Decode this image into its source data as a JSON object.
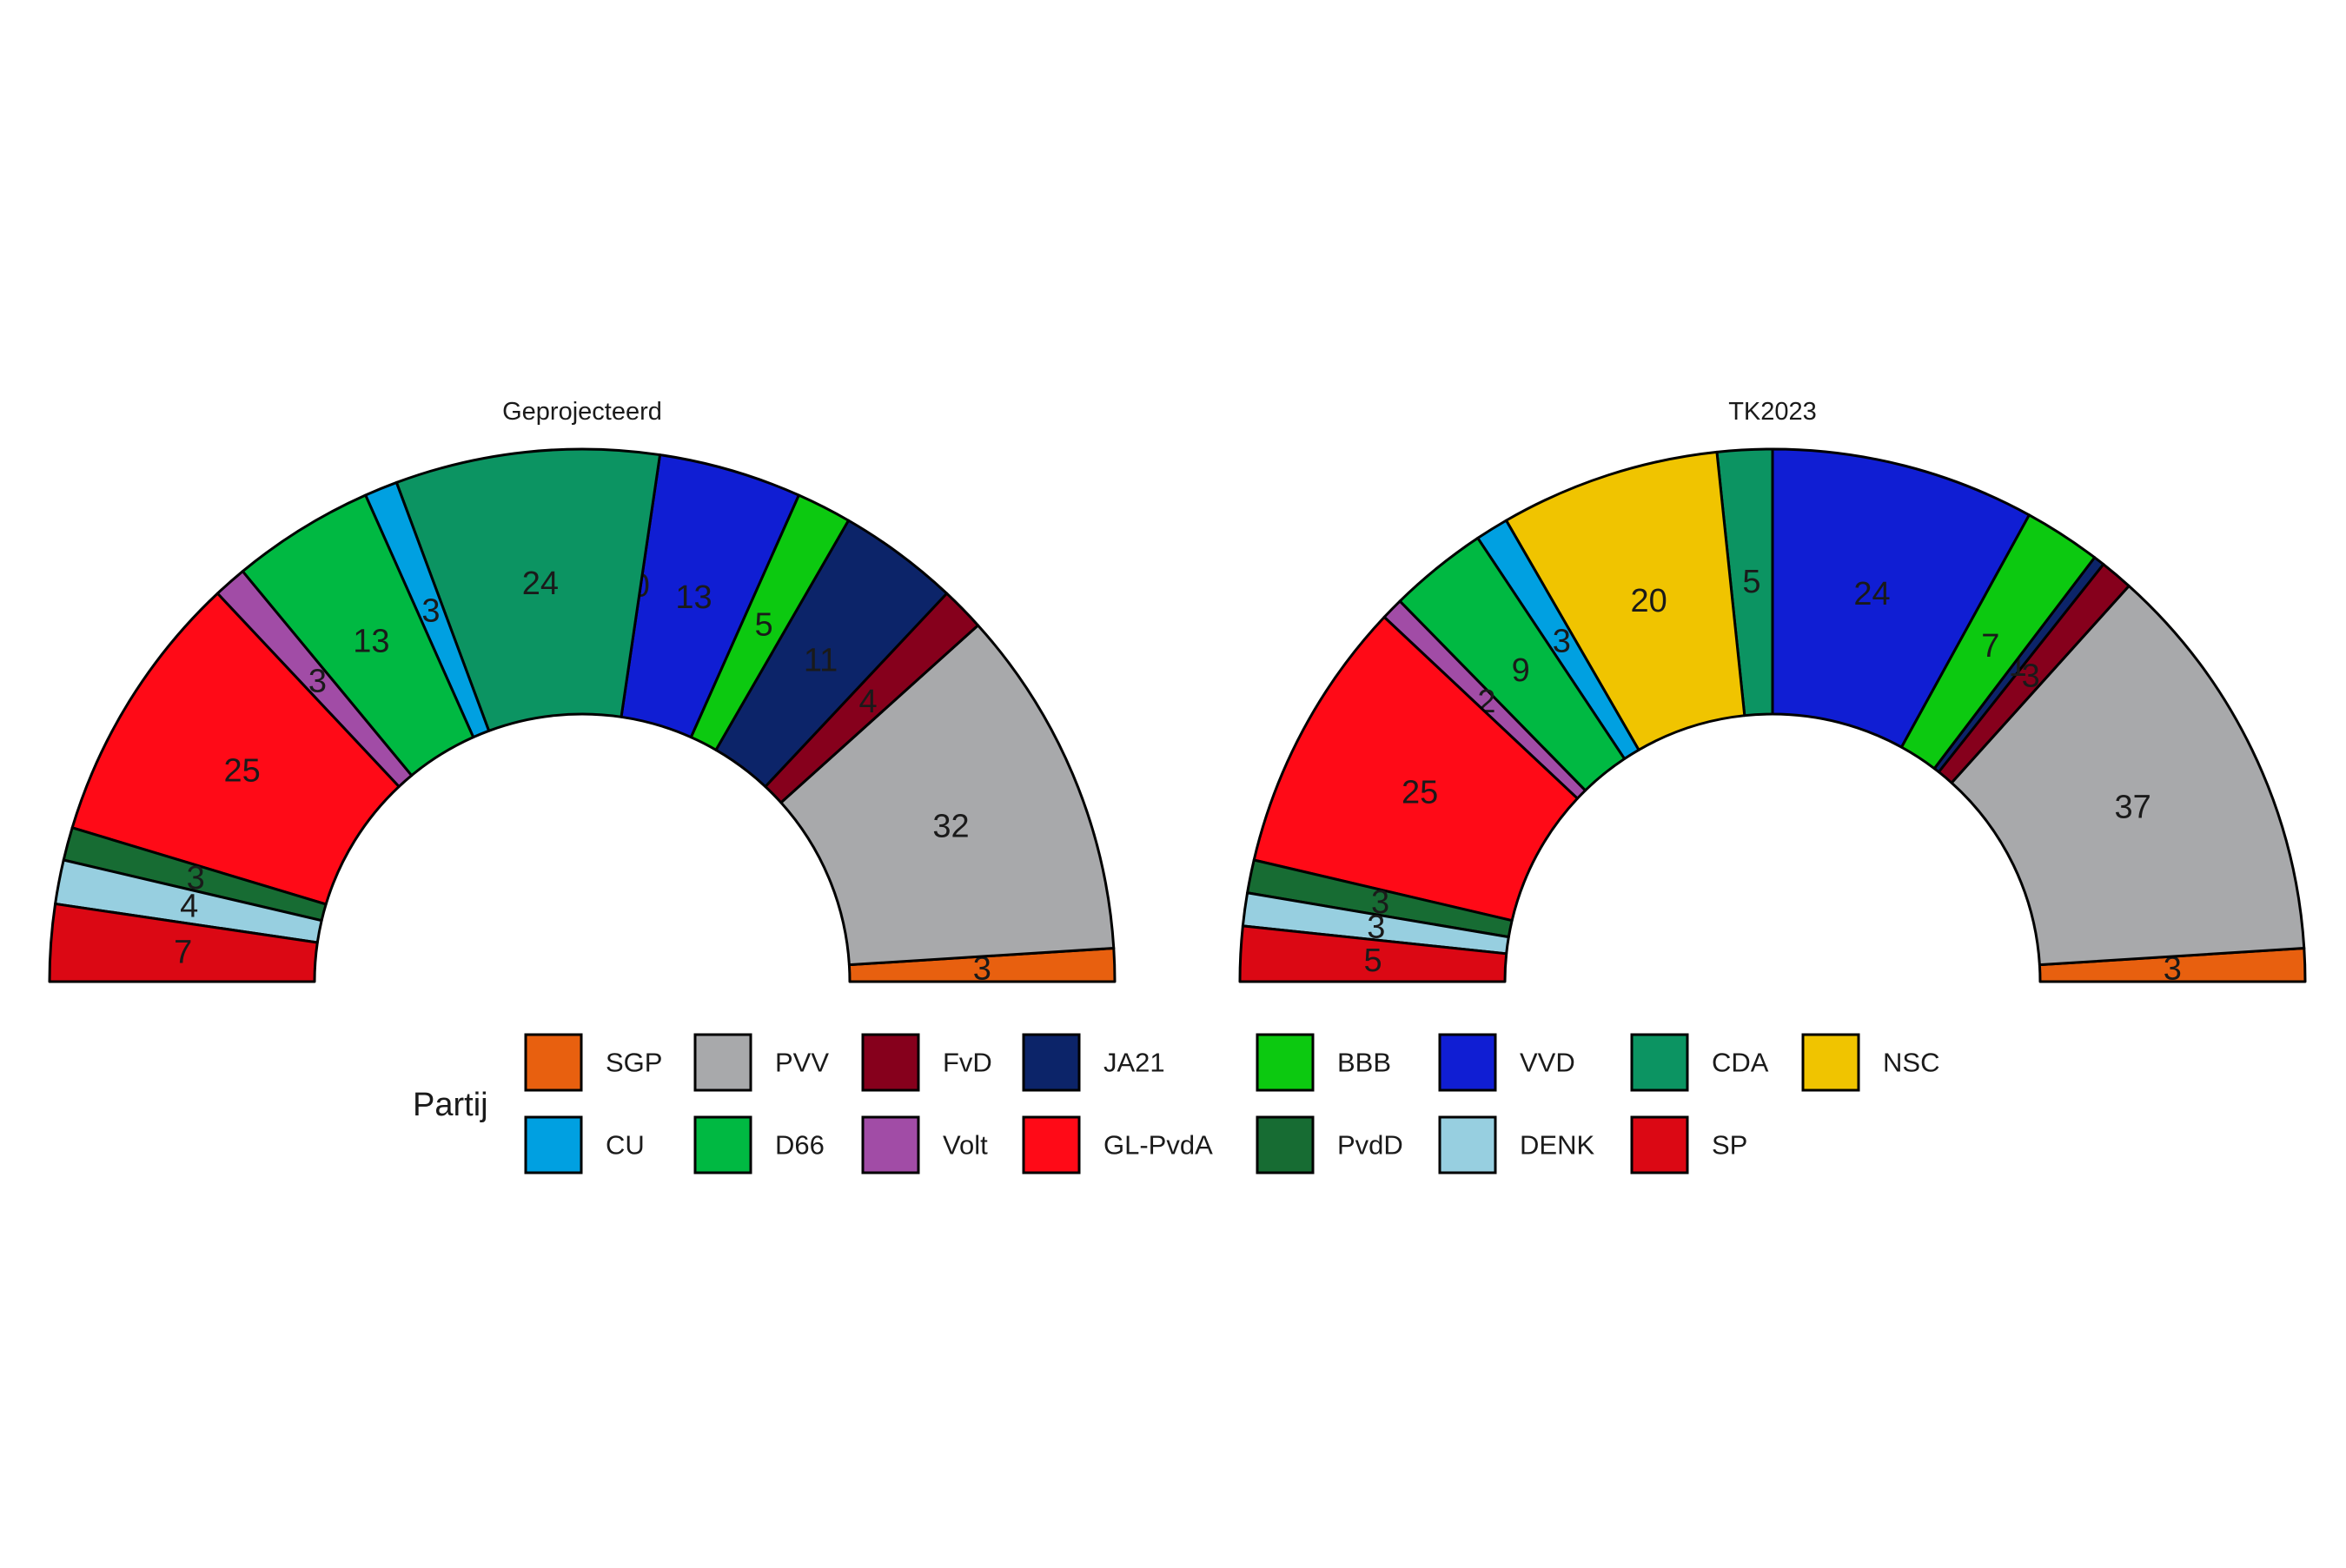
{
  "legend": {
    "title": "Partij",
    "items": [
      {
        "name": "SGP",
        "color": "#E8600F"
      },
      {
        "name": "PVV",
        "color": "#A8A9AB"
      },
      {
        "name": "FvD",
        "color": "#86001C"
      },
      {
        "name": "JA21",
        "color": "#0C2469"
      },
      {
        "name": "BBB",
        "color": "#0CC910"
      },
      {
        "name": "VVD",
        "color": "#101ED3"
      },
      {
        "name": "CDA",
        "color": "#0C9462"
      },
      {
        "name": "NSC",
        "color": "#F0C400"
      },
      {
        "name": "CU",
        "color": "#00A0E1"
      },
      {
        "name": "D66",
        "color": "#00B942"
      },
      {
        "name": "Volt",
        "color": "#A14CA6"
      },
      {
        "name": "GL-PvdA",
        "color": "#FF0A17"
      },
      {
        "name": "PvdD",
        "color": "#176C33"
      },
      {
        "name": "DENK",
        "color": "#97CFE0"
      },
      {
        "name": "SP",
        "color": "#DB0814"
      }
    ]
  },
  "chart_data": [
    {
      "type": "pie",
      "variant": "parliament-half-donut",
      "title": "Geprojecteerd",
      "total_seats": 150,
      "slices": [
        {
          "party": "SGP",
          "seats": 3,
          "label": "3"
        },
        {
          "party": "PVV",
          "seats": 32,
          "label": "32"
        },
        {
          "party": "FvD",
          "seats": 4,
          "label": "4"
        },
        {
          "party": "JA21",
          "seats": 11,
          "label": "11"
        },
        {
          "party": "BBB",
          "seats": 5,
          "label": "5"
        },
        {
          "party": "VVD",
          "seats": 13,
          "label": "13"
        },
        {
          "party": "NSC",
          "seats": 0,
          "label": "0"
        },
        {
          "party": "CDA",
          "seats": 24,
          "label": "24"
        },
        {
          "party": "CU",
          "seats": 3,
          "label": "3"
        },
        {
          "party": "D66",
          "seats": 13,
          "label": "13"
        },
        {
          "party": "Volt",
          "seats": 3,
          "label": "3"
        },
        {
          "party": "GL-PvdA",
          "seats": 25,
          "label": "25"
        },
        {
          "party": "PvdD",
          "seats": 3,
          "label": "3"
        },
        {
          "party": "DENK",
          "seats": 4,
          "label": "4"
        },
        {
          "party": "SP",
          "seats": 7,
          "label": "7"
        }
      ]
    },
    {
      "type": "pie",
      "variant": "parliament-half-donut",
      "title": "TK2023",
      "total_seats": 150,
      "slices": [
        {
          "party": "SGP",
          "seats": 3,
          "label": "3"
        },
        {
          "party": "PVV",
          "seats": 37,
          "label": "37"
        },
        {
          "party": "FvD",
          "seats": 3,
          "label": "3"
        },
        {
          "party": "JA21",
          "seats": 1,
          "label": "1"
        },
        {
          "party": "BBB",
          "seats": 7,
          "label": "7"
        },
        {
          "party": "VVD",
          "seats": 24,
          "label": "24"
        },
        {
          "party": "CDA",
          "seats": 5,
          "label": "5"
        },
        {
          "party": "NSC",
          "seats": 20,
          "label": "20"
        },
        {
          "party": "CU",
          "seats": 3,
          "label": "3"
        },
        {
          "party": "D66",
          "seats": 9,
          "label": "9"
        },
        {
          "party": "Volt",
          "seats": 2,
          "label": "2"
        },
        {
          "party": "GL-PvdA",
          "seats": 25,
          "label": "25"
        },
        {
          "party": "PvdD",
          "seats": 3,
          "label": "3"
        },
        {
          "party": "DENK",
          "seats": 3,
          "label": "3"
        },
        {
          "party": "SP",
          "seats": 5,
          "label": "5"
        }
      ]
    }
  ]
}
